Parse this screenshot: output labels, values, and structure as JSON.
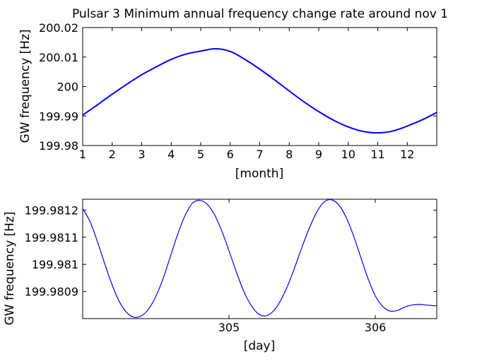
{
  "chart_data": [
    {
      "type": "line",
      "title": "Pulsar 3 Minimum annual frequency change rate around nov 1",
      "xlabel": "[month]",
      "ylabel": "GW frequency [Hz]",
      "xlim": [
        1,
        13
      ],
      "ylim": [
        199.98,
        200.02
      ],
      "xticks": [
        1,
        2,
        3,
        4,
        5,
        6,
        7,
        8,
        9,
        10,
        11,
        12
      ],
      "xtick_labels": [
        "1",
        "2",
        "3",
        "4",
        "5",
        "6",
        "7",
        "8",
        "9",
        "10",
        "11",
        "12"
      ],
      "yticks": [
        199.98,
        199.99,
        200,
        200.01,
        200.02
      ],
      "ytick_labels": [
        "199.98",
        "199.99",
        "200",
        "200.01",
        "200.02"
      ],
      "series": [
        {
          "color": "#0000ff",
          "x": [
            1.0,
            1.5,
            2.0,
            2.5,
            3.0,
            3.5,
            4.0,
            4.5,
            5.0,
            5.5,
            6.0,
            6.5,
            7.0,
            7.5,
            8.0,
            8.5,
            9.0,
            9.5,
            10.0,
            10.5,
            11.0,
            11.5,
            12.0,
            12.5,
            13.0
          ],
          "y": [
            199.9903,
            199.9938,
            199.9974,
            200.0008,
            200.004,
            200.0067,
            200.0092,
            200.011,
            200.012,
            200.0128,
            200.0119,
            200.0092,
            200.0059,
            200.0023,
            199.9985,
            199.9948,
            199.9915,
            199.9886,
            199.9863,
            199.9848,
            199.9843,
            199.9849,
            199.9866,
            199.9887,
            199.9912
          ]
        }
      ]
    },
    {
      "type": "line",
      "title": "",
      "xlabel": "[day]",
      "ylabel": "GW frequency [Hz]",
      "xlim": [
        304.0,
        306.42
      ],
      "ylim": [
        199.9808,
        199.98124
      ],
      "xticks": [
        305,
        306
      ],
      "xtick_labels": [
        "305",
        "306"
      ],
      "yticks": [
        199.9809,
        199.981,
        199.9811,
        199.9812
      ],
      "ytick_labels": [
        "199.9809",
        "199.981",
        "199.9811",
        "199.9812"
      ],
      "series": [
        {
          "color": "#0000ff",
          "x": [
            304.0,
            304.05,
            304.1,
            304.15,
            304.2,
            304.25,
            304.3,
            304.35,
            304.4,
            304.45,
            304.5,
            304.55,
            304.6,
            304.65,
            304.7,
            304.75,
            304.8,
            304.85,
            304.9,
            304.95,
            305.0,
            305.05,
            305.1,
            305.15,
            305.2,
            305.25,
            305.3,
            305.35,
            305.4,
            305.45,
            305.5,
            305.55,
            305.6,
            305.65,
            305.7,
            305.75,
            305.8,
            305.85,
            305.9,
            305.95,
            306.0,
            306.05,
            306.1,
            306.15,
            306.2,
            306.25,
            306.3,
            306.35,
            306.42
          ],
          "y": [
            199.981205,
            199.981158,
            199.981085,
            199.981003,
            199.980926,
            199.980863,
            199.980823,
            199.980805,
            199.98081,
            199.980835,
            199.980882,
            199.980948,
            199.98103,
            199.981112,
            199.98118,
            199.981225,
            199.981236,
            199.981222,
            199.981184,
            199.981124,
            199.98105,
            199.980972,
            199.980902,
            199.98085,
            199.980818,
            199.98081,
            199.980826,
            199.980864,
            199.98092,
            199.98099,
            199.981065,
            199.981135,
            199.981193,
            199.98123,
            199.981238,
            199.981219,
            199.981174,
            199.981107,
            199.981027,
            199.980948,
            199.980884,
            199.980845,
            199.980828,
            199.98083,
            199.980842,
            199.98085,
            199.980852,
            199.98085,
            199.980847
          ]
        }
      ]
    }
  ]
}
